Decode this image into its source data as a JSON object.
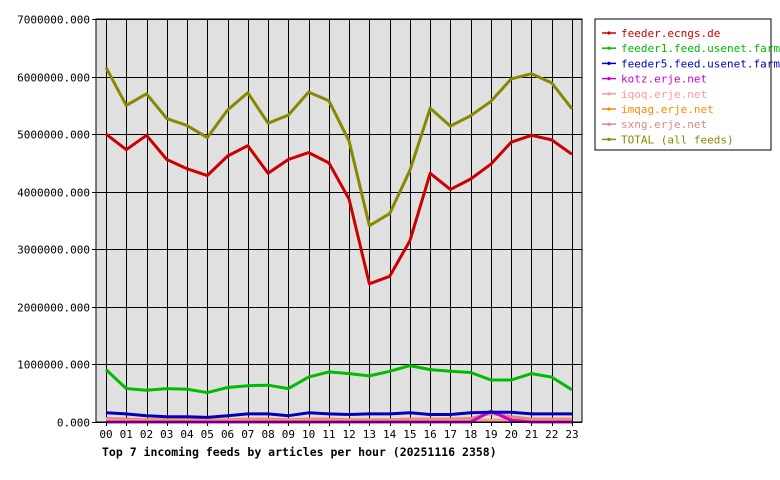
{
  "chart_data": {
    "type": "line",
    "title": "Top 7 incoming feeds by articles per hour (20251116 2358)",
    "xlabel": "",
    "ylabel": "",
    "categories": [
      "00",
      "01",
      "02",
      "03",
      "04",
      "05",
      "06",
      "07",
      "08",
      "09",
      "10",
      "11",
      "12",
      "13",
      "14",
      "15",
      "16",
      "17",
      "18",
      "19",
      "20",
      "21",
      "22",
      "23"
    ],
    "yticks": [
      "0.000",
      "1000000.000",
      "2000000.000",
      "3000000.000",
      "4000000.000",
      "5000000.000",
      "6000000.000",
      "7000000.000"
    ],
    "ylim": [
      0,
      7000000
    ],
    "grid": true,
    "legend_position": "right",
    "plot_background": "#e0e0e0",
    "series": [
      {
        "name": "feeder.ecngs.de",
        "color": "#cc0000",
        "values": [
          5000000,
          4730000,
          4980000,
          4560000,
          4400000,
          4280000,
          4620000,
          4800000,
          4320000,
          4560000,
          4680000,
          4500000,
          3870000,
          2400000,
          2530000,
          3150000,
          4320000,
          4040000,
          4220000,
          4480000,
          4860000,
          4980000,
          4900000,
          4650000
        ]
      },
      {
        "name": "feeder1.feed.usenet.farm",
        "color": "#00bb00",
        "values": [
          910000,
          580000,
          550000,
          580000,
          570000,
          510000,
          600000,
          630000,
          640000,
          580000,
          780000,
          870000,
          840000,
          800000,
          880000,
          980000,
          910000,
          880000,
          860000,
          730000,
          730000,
          840000,
          780000,
          560000
        ]
      },
      {
        "name": "feeder5.feed.usenet.farm",
        "color": "#0000bb",
        "values": [
          160000,
          140000,
          110000,
          90000,
          90000,
          80000,
          110000,
          140000,
          140000,
          110000,
          160000,
          140000,
          130000,
          140000,
          140000,
          160000,
          130000,
          130000,
          160000,
          170000,
          170000,
          140000,
          140000,
          140000
        ]
      },
      {
        "name": "kotz.erje.net",
        "color": "#cc00cc",
        "values": [
          0,
          0,
          0,
          0,
          0,
          0,
          0,
          0,
          0,
          0,
          0,
          0,
          0,
          0,
          0,
          0,
          0,
          0,
          0,
          190000,
          30000,
          0,
          0,
          0
        ]
      },
      {
        "name": "iqoq.erje.net",
        "color": "#ff9999",
        "values": [
          30000,
          20000,
          20000,
          20000,
          20000,
          20000,
          20000,
          20000,
          20000,
          20000,
          20000,
          20000,
          20000,
          20000,
          20000,
          20000,
          20000,
          20000,
          20000,
          20000,
          20000,
          20000,
          20000,
          20000
        ]
      },
      {
        "name": "imqag.erje.net",
        "color": "#ff8800",
        "values": [
          30000,
          30000,
          30000,
          30000,
          30000,
          30000,
          30000,
          30000,
          30000,
          30000,
          30000,
          30000,
          30000,
          30000,
          30000,
          30000,
          30000,
          30000,
          30000,
          30000,
          30000,
          30000,
          30000,
          30000
        ]
      },
      {
        "name": "sxng.erje.net",
        "color": "#dd8888",
        "values": [
          60000,
          50000,
          40000,
          40000,
          40000,
          30000,
          40000,
          50000,
          50000,
          40000,
          50000,
          50000,
          40000,
          40000,
          40000,
          50000,
          50000,
          50000,
          60000,
          150000,
          90000,
          50000,
          50000,
          50000
        ]
      },
      {
        "name": "TOTAL (all feeds)",
        "color": "#888800",
        "values": [
          6160000,
          5500000,
          5700000,
          5270000,
          5150000,
          4940000,
          5420000,
          5720000,
          5190000,
          5330000,
          5730000,
          5580000,
          4880000,
          3410000,
          3620000,
          4370000,
          5450000,
          5140000,
          5320000,
          5570000,
          5960000,
          6050000,
          5890000,
          5440000
        ]
      }
    ]
  }
}
